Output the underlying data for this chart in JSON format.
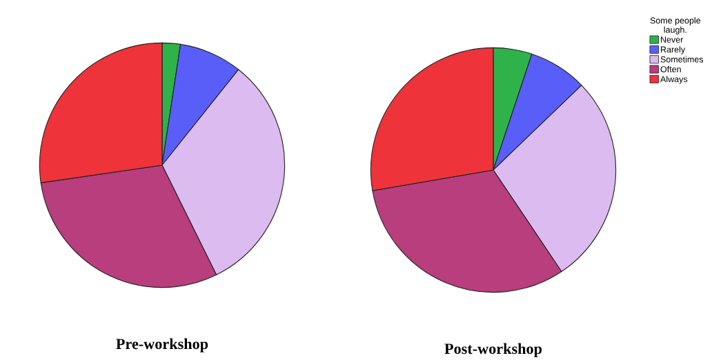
{
  "chart_data": [
    {
      "type": "pie",
      "title": "Pre-workshop",
      "legend_title": "Some people\nlaugh.",
      "legend": "right",
      "categories": [
        "Never",
        "Rarely",
        "Sometimes",
        "Often",
        "Always"
      ],
      "values": [
        2.4,
        8.3,
        32.0,
        30.0,
        27.3
      ],
      "colors": [
        "#2fb24a",
        "#5a5ef8",
        "#dcbbf0",
        "#b83e7d",
        "#ef333a"
      ]
    },
    {
      "type": "pie",
      "title": "Post-workshop",
      "categories": [
        null,
        null,
        null,
        null,
        null
      ],
      "values": [
        5.1,
        7.7,
        27.8,
        31.7,
        27.7
      ],
      "colors": [
        "#2fb24a",
        "#5a5ef8",
        "#dcbbf0",
        "#b83e7d",
        "#ef333a"
      ]
    }
  ]
}
